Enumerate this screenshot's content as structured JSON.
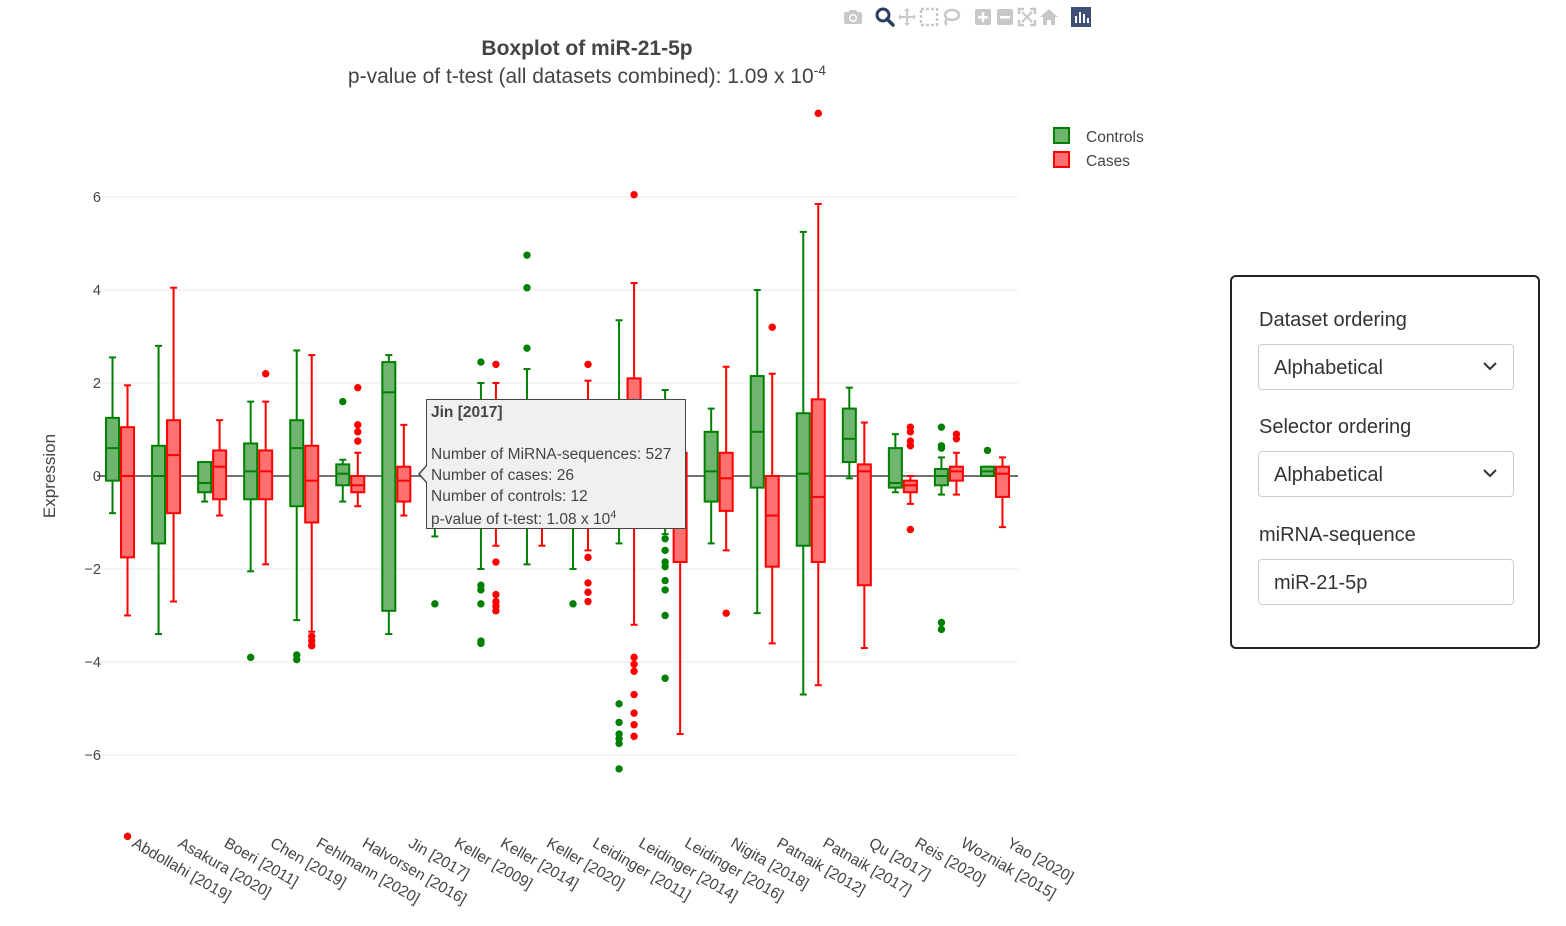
{
  "toolbar": {
    "icons": [
      "camera-icon",
      "zoom-icon",
      "pan-icon",
      "box-select-icon",
      "lasso-icon",
      "zoom-in-icon",
      "zoom-out-icon",
      "autoscale-icon",
      "reset-axes-icon",
      "plotly-logo-icon"
    ],
    "active_color": "#2a3f5f",
    "inactive_color": "#c8c8c8"
  },
  "colors": {
    "controls_fill": "#6fb56f",
    "controls_line": "#008000",
    "cases_fill": "#ff7070",
    "cases_line": "#ff0000"
  },
  "chart_data": {
    "type": "box",
    "title": "Boxplot of miR-21-5p",
    "subtitle_prefix": "p-value of t-test (all datasets combined): 1.09 x 10",
    "subtitle_exp": "-4",
    "ylabel": "Expression",
    "ylim": [
      -7.7,
      7.7
    ],
    "yticks": [
      6,
      4,
      2,
      0,
      -2,
      -4,
      -6
    ],
    "ytick_labels": [
      "6",
      "4",
      "2",
      "0",
      "−2",
      "−4",
      "−6"
    ],
    "grid": true,
    "legend_placement": "top-right",
    "categories": [
      "Abdollahi [2019]",
      "Asakura [2020]",
      "Boeri [2011]",
      "Chen [2019]",
      "Fehlmann [2020]",
      "Halvorsen [2016]",
      "Jin [2017]",
      "Keller [2009]",
      "Keller [2014]",
      "Keller [2020]",
      "Leidinger [2011]",
      "Leidinger [2014]",
      "Leidinger [2016]",
      "Nigita [2018]",
      "Patnaik [2012]",
      "Patnaik [2017]",
      "Qu [2017]",
      "Reis [2020]",
      "Wozniak [2015]",
      "Yao [2020]"
    ],
    "series": [
      {
        "name": "Controls",
        "boxes": [
          {
            "q1": -0.1,
            "median": 0.6,
            "q3": 1.25,
            "lower": -0.8,
            "upper": 2.55,
            "outliers": []
          },
          {
            "q1": -1.45,
            "median": 0.0,
            "q3": 0.65,
            "lower": -3.4,
            "upper": 2.8,
            "outliers": []
          },
          {
            "q1": -0.35,
            "median": -0.15,
            "q3": 0.3,
            "lower": -0.55,
            "upper": 0.3,
            "outliers": []
          },
          {
            "q1": -0.5,
            "median": 0.1,
            "q3": 0.7,
            "lower": -2.05,
            "upper": 1.6,
            "outliers": [
              -3.9
            ]
          },
          {
            "q1": -0.65,
            "median": 0.6,
            "q3": 1.2,
            "lower": -3.1,
            "upper": 2.7,
            "outliers": [
              -3.85,
              -3.95
            ]
          },
          {
            "q1": -0.2,
            "median": 0.05,
            "q3": 0.25,
            "lower": -0.55,
            "upper": 0.35,
            "outliers": [
              1.6
            ]
          },
          {
            "q1": -2.9,
            "median": 1.8,
            "q3": 2.45,
            "lower": -3.4,
            "upper": 2.6,
            "outliers": []
          },
          {
            "q1": -0.4,
            "median": 0.1,
            "q3": 0.45,
            "lower": -1.3,
            "upper": 1.0,
            "outliers": [
              -2.75
            ]
          },
          {
            "q1": -0.5,
            "median": 0.2,
            "q3": 0.8,
            "lower": -2.0,
            "upper": 2.0,
            "outliers": [
              2.45,
              -2.35,
              -2.45,
              -2.75,
              -3.55,
              -3.6
            ]
          },
          {
            "q1": -0.45,
            "median": 0.2,
            "q3": 0.9,
            "lower": -1.9,
            "upper": 2.3,
            "outliers": [
              4.75,
              4.05,
              2.75
            ]
          },
          {
            "q1": -0.5,
            "median": 0.1,
            "q3": 0.6,
            "lower": -2.0,
            "upper": 1.5,
            "outliers": [
              -2.75
            ]
          },
          {
            "q1": -0.4,
            "median": 0.3,
            "q3": 0.9,
            "lower": -1.45,
            "upper": 3.35,
            "outliers": [
              -4.9,
              -5.3,
              -5.55,
              -5.65,
              -5.75,
              -6.3
            ]
          },
          {
            "q1": -0.6,
            "median": 0.2,
            "q3": 1.0,
            "lower": -1.25,
            "upper": 1.85,
            "outliers": [
              -1.35,
              -1.6,
              -1.85,
              -1.95,
              -2.25,
              -2.45,
              -3.0,
              -4.35
            ]
          },
          {
            "q1": -0.55,
            "median": 0.1,
            "q3": 0.95,
            "lower": -1.45,
            "upper": 1.45,
            "outliers": []
          },
          {
            "q1": -0.25,
            "median": 0.95,
            "q3": 2.15,
            "lower": -2.95,
            "upper": 4.0,
            "outliers": []
          },
          {
            "q1": -1.5,
            "median": 0.05,
            "q3": 1.35,
            "lower": -4.7,
            "upper": 5.25,
            "outliers": []
          },
          {
            "q1": 0.3,
            "median": 0.8,
            "q3": 1.45,
            "lower": -0.05,
            "upper": 1.9,
            "outliers": []
          },
          {
            "q1": -0.25,
            "median": -0.15,
            "q3": 0.6,
            "lower": -0.35,
            "upper": 0.9,
            "outliers": []
          },
          {
            "q1": -0.2,
            "median": 0.0,
            "q3": 0.15,
            "lower": -0.4,
            "upper": 0.4,
            "outliers": [
              1.05,
              0.65,
              0.6,
              -3.15,
              -3.3
            ]
          },
          {
            "q1": 0.0,
            "median": 0.1,
            "q3": 0.2,
            "lower": 0.0,
            "upper": 0.2,
            "outliers": [
              0.55
            ]
          }
        ]
      },
      {
        "name": "Cases",
        "boxes": [
          {
            "q1": -1.75,
            "median": 0.0,
            "q3": 1.05,
            "lower": -3.0,
            "upper": 1.95,
            "outliers": [
              -7.75
            ]
          },
          {
            "q1": -0.8,
            "median": 0.45,
            "q3": 1.2,
            "lower": -2.7,
            "upper": 4.05,
            "outliers": []
          },
          {
            "q1": -0.5,
            "median": 0.2,
            "q3": 0.55,
            "lower": -0.85,
            "upper": 1.2,
            "outliers": []
          },
          {
            "q1": -0.5,
            "median": 0.1,
            "q3": 0.55,
            "lower": -1.9,
            "upper": 1.6,
            "outliers": [
              2.2
            ]
          },
          {
            "q1": -1.0,
            "median": -0.1,
            "q3": 0.65,
            "lower": -3.35,
            "upper": 2.6,
            "outliers": [
              -3.45,
              -3.55,
              -3.65
            ]
          },
          {
            "q1": -0.35,
            "median": -0.2,
            "q3": 0.0,
            "lower": -0.65,
            "upper": 0.5,
            "outliers": [
              1.9,
              1.1,
              0.95,
              0.75
            ]
          },
          {
            "q1": -0.55,
            "median": -0.1,
            "q3": 0.2,
            "lower": -0.85,
            "upper": 1.1,
            "outliers": []
          },
          {
            "q1": -0.5,
            "median": 0.0,
            "q3": 0.4,
            "lower": -1.0,
            "upper": 0.9,
            "outliers": []
          },
          {
            "q1": -0.5,
            "median": 0.0,
            "q3": 0.6,
            "lower": -1.5,
            "upper": 2.0,
            "outliers": [
              2.4,
              -1.85,
              -2.55,
              -2.7,
              -2.8,
              -2.9
            ]
          },
          {
            "q1": -0.45,
            "median": 0.05,
            "q3": 0.5,
            "lower": -1.5,
            "upper": 1.5,
            "outliers": []
          },
          {
            "q1": -0.5,
            "median": 0.0,
            "q3": 0.6,
            "lower": -1.6,
            "upper": 2.05,
            "outliers": [
              2.4,
              -1.75,
              -2.3,
              -2.5,
              -2.7
            ]
          },
          {
            "q1": -0.5,
            "median": 0.6,
            "q3": 2.1,
            "lower": -3.2,
            "upper": 4.15,
            "outliers": [
              6.05,
              -3.9,
              -4.05,
              -4.2,
              -4.7,
              -5.1,
              -5.35,
              -5.6
            ]
          },
          {
            "q1": -1.85,
            "median": -0.3,
            "q3": 0.5,
            "lower": -5.55,
            "upper": 0.8,
            "outliers": []
          },
          {
            "q1": -0.75,
            "median": -0.05,
            "q3": 0.5,
            "lower": -1.6,
            "upper": 2.35,
            "outliers": [
              -2.95
            ]
          },
          {
            "q1": -1.95,
            "median": -0.85,
            "q3": 0.0,
            "lower": -3.6,
            "upper": 2.2,
            "outliers": [
              3.2
            ]
          },
          {
            "q1": -1.85,
            "median": -0.45,
            "q3": 1.65,
            "lower": -4.5,
            "upper": 5.85,
            "outliers": [
              7.8
            ]
          },
          {
            "q1": -2.35,
            "median": 0.1,
            "q3": 0.25,
            "lower": -3.7,
            "upper": 1.15,
            "outliers": []
          },
          {
            "q1": -0.35,
            "median": -0.2,
            "q3": -0.1,
            "lower": -0.6,
            "upper": 0.0,
            "outliers": [
              1.05,
              0.95,
              0.75,
              0.65,
              -1.15
            ]
          },
          {
            "q1": -0.1,
            "median": 0.1,
            "q3": 0.2,
            "lower": -0.4,
            "upper": 0.5,
            "outliers": [
              0.9,
              0.8
            ]
          },
          {
            "q1": -0.45,
            "median": 0.05,
            "q3": 0.2,
            "lower": -1.1,
            "upper": 0.4,
            "outliers": []
          }
        ]
      }
    ]
  },
  "tooltip": {
    "title": "Jin [2017]",
    "line1": "Number of MiRNA-sequences: 527",
    "line2": "Number of cases: 26",
    "line3": "Number of controls: 12",
    "line4_prefix": "p-value of t-test: 1.08 x 10",
    "line4_exp": "4"
  },
  "controls_panel": {
    "dataset_ordering_label": "Dataset ordering",
    "dataset_ordering_value": "Alphabetical",
    "selector_ordering_label": "Selector ordering",
    "selector_ordering_value": "Alphabetical",
    "mirna_label": "miRNA-sequence",
    "mirna_value": "miR-21-5p"
  }
}
